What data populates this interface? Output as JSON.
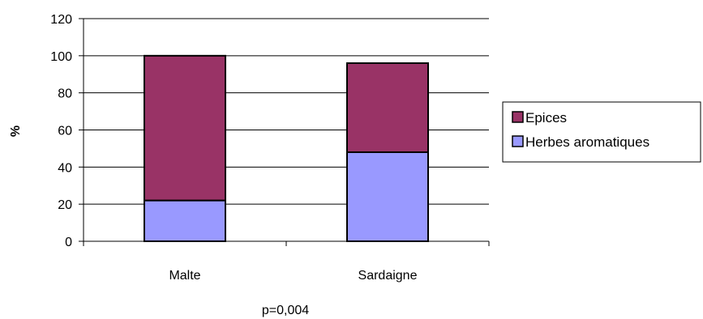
{
  "chart_data": {
    "type": "bar",
    "stacked": true,
    "categories": [
      "Malte",
      "Sardaigne"
    ],
    "series": [
      {
        "name": "Herbes aromatiques",
        "values": [
          22,
          48
        ],
        "color": "#9999ff"
      },
      {
        "name": "Epices",
        "values": [
          78,
          48
        ],
        "color": "#993366"
      }
    ],
    "ylabel": "%",
    "xlabel": "",
    "ylim": [
      0,
      120
    ],
    "yticks": [
      "0",
      "20",
      "40",
      "60",
      "80",
      "100",
      "120"
    ],
    "grid": true,
    "legend_position": "right",
    "legend_order": [
      "Epices",
      "Herbes aromatiques"
    ],
    "annotation": "p=0,004"
  }
}
